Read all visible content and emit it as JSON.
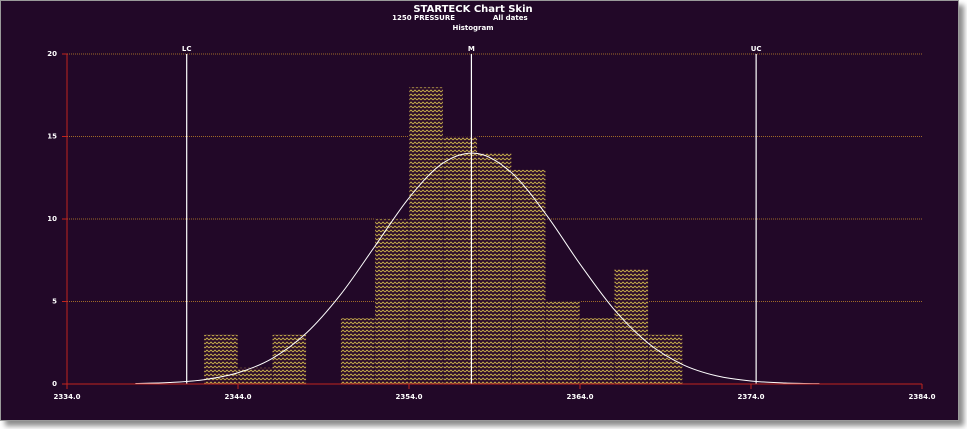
{
  "chart_data": {
    "type": "histogram",
    "title": "STARTECK Chart Skin",
    "subtitles": [
      "1250 PRESSURE",
      "All dates"
    ],
    "chart_label": "Histogram",
    "bins": [
      2342,
      2344,
      2346,
      2348,
      2350,
      2352,
      2354,
      2356,
      2358,
      2360,
      2362,
      2364,
      2366,
      2368,
      2370
    ],
    "values": [
      3,
      1,
      3,
      0,
      4,
      10,
      18,
      15,
      14,
      13,
      5,
      4,
      7,
      3
    ],
    "color": "#c9b24c",
    "curve": {
      "color": "#ffffff",
      "x": [
        2338,
        2340,
        2342,
        2344,
        2346,
        2348,
        2350,
        2352,
        2354,
        2356,
        2358,
        2360,
        2362,
        2364,
        2366,
        2368,
        2370,
        2372,
        2374,
        2376,
        2378
      ],
      "values": [
        0.03,
        0.09,
        0.26,
        0.68,
        1.55,
        3.09,
        5.42,
        8.34,
        11.28,
        13.4,
        13.97,
        12.8,
        10.3,
        7.27,
        4.51,
        2.46,
        1.18,
        0.49,
        0.18,
        0.06,
        0.02
      ]
    },
    "reference_lines": [
      {
        "label": "LC",
        "value": 2341.0
      },
      {
        "label": "M",
        "value": 2357.65
      },
      {
        "label": "UC",
        "value": 2374.3
      }
    ],
    "xlim": [
      2334,
      2384
    ],
    "xticks": [
      {
        "value": 2334,
        "label": "2334.0"
      },
      {
        "value": 2344,
        "label": "2344.0"
      },
      {
        "value": 2354,
        "label": "2354.0"
      },
      {
        "value": 2364,
        "label": "2364.0"
      },
      {
        "value": 2374,
        "label": "2374.0"
      },
      {
        "value": 2384,
        "label": "2384.0"
      }
    ],
    "ylim": [
      0,
      20
    ],
    "yticks": [
      0,
      5,
      10,
      15,
      20
    ],
    "grid": true,
    "grid_color": "#c98a2a",
    "axis_color": "#c0241e"
  }
}
